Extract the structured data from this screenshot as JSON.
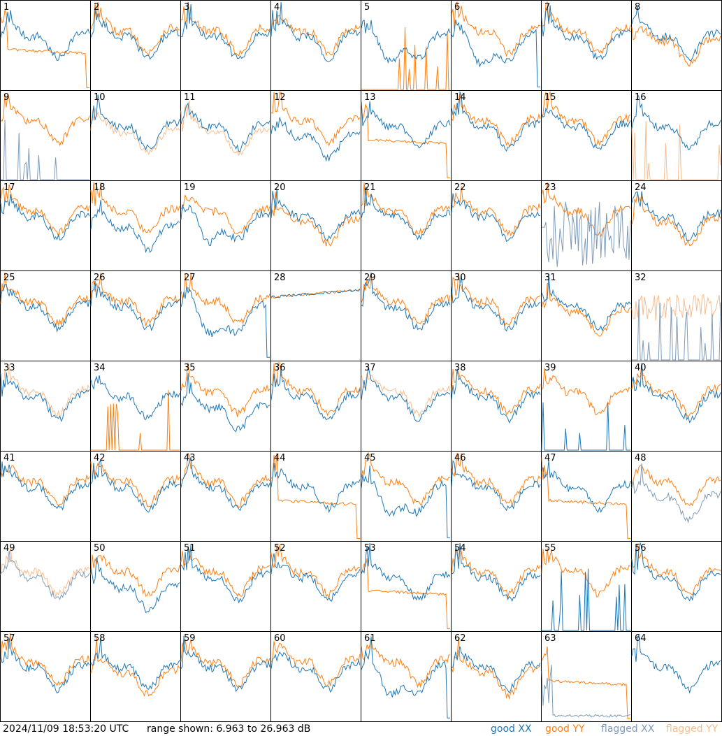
{
  "footer": {
    "timestamp": "2024/11/09 18:53:20 UTC",
    "range_text": "range shown: 6.963 to 26.963 dB"
  },
  "legend": {
    "good_xx": "good XX",
    "good_yy": "good YY",
    "flagged_xx": "flagged XX",
    "flagged_yy": "flagged YY"
  },
  "colors": {
    "good_xx": "#1f77b4",
    "good_yy": "#ff7f0e",
    "flagged_xx": "#7f9bb8",
    "flagged_yy": "#f6bd8e"
  },
  "chart_data": {
    "type": "line",
    "title": "",
    "layout": "8x8 grid of small multiples",
    "y_range_db": [
      6.963,
      26.963
    ],
    "series_names": [
      "good XX",
      "good YY",
      "flagged XX",
      "flagged YY"
    ],
    "tiles": [
      {
        "n": "1",
        "xx": "good",
        "yy": "good",
        "shape_xx": "normal",
        "shape_yy": "drop"
      },
      {
        "n": "2",
        "xx": "good",
        "yy": "good",
        "shape_xx": "normal",
        "shape_yy": "normal"
      },
      {
        "n": "3",
        "xx": "good",
        "yy": "good",
        "shape_xx": "normal",
        "shape_yy": "normal"
      },
      {
        "n": "4",
        "xx": "good",
        "yy": "good",
        "shape_xx": "normal",
        "shape_yy": "normal"
      },
      {
        "n": "5",
        "xx": "good",
        "yy": "good",
        "shape_xx": "dip",
        "shape_yy": "spikes"
      },
      {
        "n": "6",
        "xx": "good",
        "yy": "good",
        "shape_xx": "dropend",
        "shape_yy": "normal"
      },
      {
        "n": "7",
        "xx": "good",
        "yy": "good",
        "shape_xx": "normal",
        "shape_yy": "normal"
      },
      {
        "n": "8",
        "xx": "good",
        "yy": "good",
        "shape_xx": "normal",
        "shape_yy": "low"
      },
      {
        "n": "9",
        "xx": "flagged",
        "yy": "good",
        "shape_xx": "spikes",
        "shape_yy": "normal"
      },
      {
        "n": "10",
        "xx": "good",
        "yy": "flagged",
        "shape_xx": "normal",
        "shape_yy": "low"
      },
      {
        "n": "11",
        "xx": "good",
        "yy": "flagged",
        "shape_xx": "normal",
        "shape_yy": "low"
      },
      {
        "n": "12",
        "xx": "good",
        "yy": "good",
        "shape_xx": "low",
        "shape_yy": "normal"
      },
      {
        "n": "13",
        "xx": "good",
        "yy": "good",
        "shape_xx": "normal",
        "shape_yy": "drop"
      },
      {
        "n": "14",
        "xx": "good",
        "yy": "good",
        "shape_xx": "normal",
        "shape_yy": "normal"
      },
      {
        "n": "15",
        "xx": "good",
        "yy": "good",
        "shape_xx": "normal",
        "shape_yy": "normal"
      },
      {
        "n": "16",
        "xx": "good",
        "yy": "flagged",
        "shape_xx": "normal",
        "shape_yy": "spikes"
      },
      {
        "n": "17",
        "xx": "good",
        "yy": "good",
        "shape_xx": "normal",
        "shape_yy": "normal"
      },
      {
        "n": "18",
        "xx": "good",
        "yy": "good",
        "shape_xx": "low",
        "shape_yy": "normal"
      },
      {
        "n": "19",
        "xx": "good",
        "yy": "good",
        "shape_xx": "dip",
        "shape_yy": "normal"
      },
      {
        "n": "20",
        "xx": "good",
        "yy": "good",
        "shape_xx": "normal",
        "shape_yy": "low"
      },
      {
        "n": "21",
        "xx": "good",
        "yy": "good",
        "shape_xx": "normal",
        "shape_yy": "normal"
      },
      {
        "n": "22",
        "xx": "good",
        "yy": "good",
        "shape_xx": "normal",
        "shape_yy": "normal"
      },
      {
        "n": "23",
        "xx": "flagged",
        "yy": "good",
        "shape_xx": "noise",
        "shape_yy": "normal"
      },
      {
        "n": "24",
        "xx": "good",
        "yy": "good",
        "shape_xx": "normal",
        "shape_yy": "low"
      },
      {
        "n": "25",
        "xx": "good",
        "yy": "good",
        "shape_xx": "normal",
        "shape_yy": "normal"
      },
      {
        "n": "26",
        "xx": "good",
        "yy": "good",
        "shape_xx": "normal",
        "shape_yy": "normal"
      },
      {
        "n": "27",
        "xx": "good",
        "yy": "good",
        "shape_xx": "dropend",
        "shape_yy": "normal"
      },
      {
        "n": "28",
        "xx": "good",
        "yy": "good",
        "shape_xx": "flat",
        "shape_yy": "flat"
      },
      {
        "n": "29",
        "xx": "good",
        "yy": "good",
        "shape_xx": "normal",
        "shape_yy": "normal"
      },
      {
        "n": "30",
        "xx": "good",
        "yy": "good",
        "shape_xx": "normal",
        "shape_yy": "normal"
      },
      {
        "n": "31",
        "xx": "good",
        "yy": "good",
        "shape_xx": "normal",
        "shape_yy": "low"
      },
      {
        "n": "32",
        "xx": "flagged",
        "yy": "flagged",
        "shape_xx": "spikes",
        "shape_yy": "noisy"
      },
      {
        "n": "33",
        "xx": "good",
        "yy": "flagged",
        "shape_xx": "normal",
        "shape_yy": "normal"
      },
      {
        "n": "34",
        "xx": "good",
        "yy": "good",
        "shape_xx": "normal",
        "shape_yy": "spikes"
      },
      {
        "n": "35",
        "xx": "good",
        "yy": "good",
        "shape_xx": "low",
        "shape_yy": "normal"
      },
      {
        "n": "36",
        "xx": "good",
        "yy": "good",
        "shape_xx": "normal",
        "shape_yy": "normal"
      },
      {
        "n": "37",
        "xx": "good",
        "yy": "flagged",
        "shape_xx": "normal",
        "shape_yy": "normal"
      },
      {
        "n": "38",
        "xx": "good",
        "yy": "good",
        "shape_xx": "normal",
        "shape_yy": "normal"
      },
      {
        "n": "39",
        "xx": "good",
        "yy": "good",
        "shape_xx": "spikes",
        "shape_yy": "normal"
      },
      {
        "n": "40",
        "xx": "good",
        "yy": "good",
        "shape_xx": "normal",
        "shape_yy": "normal"
      },
      {
        "n": "41",
        "xx": "good",
        "yy": "good",
        "shape_xx": "normal",
        "shape_yy": "normal"
      },
      {
        "n": "42",
        "xx": "good",
        "yy": "good",
        "shape_xx": "normal",
        "shape_yy": "normal"
      },
      {
        "n": "43",
        "xx": "good",
        "yy": "good",
        "shape_xx": "normal",
        "shape_yy": "normal"
      },
      {
        "n": "44",
        "xx": "good",
        "yy": "good",
        "shape_xx": "normal",
        "shape_yy": "drop"
      },
      {
        "n": "45",
        "xx": "good",
        "yy": "good",
        "shape_xx": "dropend",
        "shape_yy": "normal"
      },
      {
        "n": "46",
        "xx": "good",
        "yy": "good",
        "shape_xx": "normal",
        "shape_yy": "normal"
      },
      {
        "n": "47",
        "xx": "good",
        "yy": "good",
        "shape_xx": "normal",
        "shape_yy": "drop"
      },
      {
        "n": "48",
        "xx": "flagged",
        "yy": "good",
        "shape_xx": "low",
        "shape_yy": "normal"
      },
      {
        "n": "49",
        "xx": "flagged",
        "yy": "flagged",
        "shape_xx": "normal",
        "shape_yy": "normal"
      },
      {
        "n": "50",
        "xx": "good",
        "yy": "good",
        "shape_xx": "low",
        "shape_yy": "normal"
      },
      {
        "n": "51",
        "xx": "good",
        "yy": "good",
        "shape_xx": "normal",
        "shape_yy": "normal"
      },
      {
        "n": "52",
        "xx": "good",
        "yy": "good",
        "shape_xx": "normal",
        "shape_yy": "normal"
      },
      {
        "n": "53",
        "xx": "good",
        "yy": "good",
        "shape_xx": "normal",
        "shape_yy": "drop"
      },
      {
        "n": "54",
        "xx": "good",
        "yy": "good",
        "shape_xx": "normal",
        "shape_yy": "normal"
      },
      {
        "n": "55",
        "xx": "good",
        "yy": "good",
        "shape_xx": "spikes",
        "shape_yy": "normal"
      },
      {
        "n": "56",
        "xx": "good",
        "yy": "good",
        "shape_xx": "normal",
        "shape_yy": "normal"
      },
      {
        "n": "57",
        "xx": "good",
        "yy": "good",
        "shape_xx": "normal",
        "shape_yy": "normal"
      },
      {
        "n": "58",
        "xx": "good",
        "yy": "good",
        "shape_xx": "normal",
        "shape_yy": "low"
      },
      {
        "n": "59",
        "xx": "good",
        "yy": "good",
        "shape_xx": "normal",
        "shape_yy": "normal"
      },
      {
        "n": "60",
        "xx": "good",
        "yy": "good",
        "shape_xx": "normal",
        "shape_yy": "normal"
      },
      {
        "n": "61",
        "xx": "good",
        "yy": "good",
        "shape_xx": "dropend",
        "shape_yy": "normal"
      },
      {
        "n": "62",
        "xx": "good",
        "yy": "good",
        "shape_xx": "normal",
        "shape_yy": "low"
      },
      {
        "n": "63",
        "xx": "flagged",
        "yy": "good",
        "shape_xx": "floor",
        "shape_yy": "drop"
      },
      {
        "n": "64",
        "xx": "good",
        "yy": "flagged",
        "shape_xx": "normal",
        "shape_yy": "none"
      }
    ]
  }
}
